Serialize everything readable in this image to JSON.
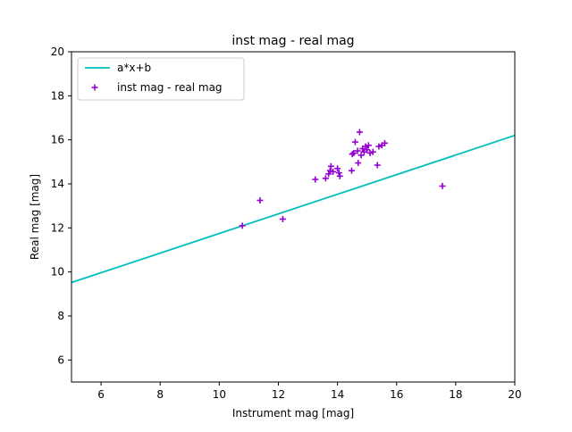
{
  "chart_data": {
    "type": "scatter",
    "title": "inst mag - real mag",
    "xlabel": "Instrument mag [mag]",
    "ylabel": "Real mag [mag]",
    "xlim": [
      5,
      20
    ],
    "ylim": [
      5,
      20
    ],
    "xticks": [
      6,
      8,
      10,
      12,
      14,
      16,
      18,
      20
    ],
    "yticks": [
      6,
      8,
      10,
      12,
      14,
      16,
      18,
      20
    ],
    "xtick_labels": [
      "6",
      "8",
      "10",
      "12",
      "14",
      "16",
      "18",
      "20"
    ],
    "ytick_labels": [
      "6",
      "8",
      "10",
      "12",
      "14",
      "16",
      "18",
      "20"
    ],
    "grid": false,
    "legend_position": "top-left",
    "series": [
      {
        "name": "a*x+b",
        "kind": "line",
        "color": "#00bfbf",
        "x": [
          5,
          20
        ],
        "y": [
          9.52,
          16.2
        ]
      },
      {
        "name": "inst mag - real mag",
        "kind": "scatter",
        "marker": "plus",
        "color": "#9400d3",
        "x": [
          10.78,
          11.38,
          12.15,
          13.25,
          13.6,
          13.7,
          13.75,
          13.78,
          13.85,
          14.0,
          14.05,
          14.08,
          14.48,
          14.5,
          14.55,
          14.6,
          14.68,
          14.7,
          14.75,
          14.8,
          14.85,
          14.9,
          14.95,
          15.0,
          15.05,
          15.1,
          15.2,
          15.35,
          15.4,
          15.5,
          15.6,
          17.55
        ],
        "y": [
          12.1,
          13.25,
          12.4,
          14.2,
          14.25,
          14.45,
          14.6,
          14.8,
          14.55,
          14.7,
          14.5,
          14.35,
          14.6,
          15.35,
          15.4,
          15.9,
          15.5,
          14.95,
          16.35,
          15.3,
          15.6,
          15.45,
          15.7,
          15.55,
          15.75,
          15.4,
          15.45,
          14.85,
          15.7,
          15.75,
          15.85,
          13.9
        ]
      }
    ]
  }
}
